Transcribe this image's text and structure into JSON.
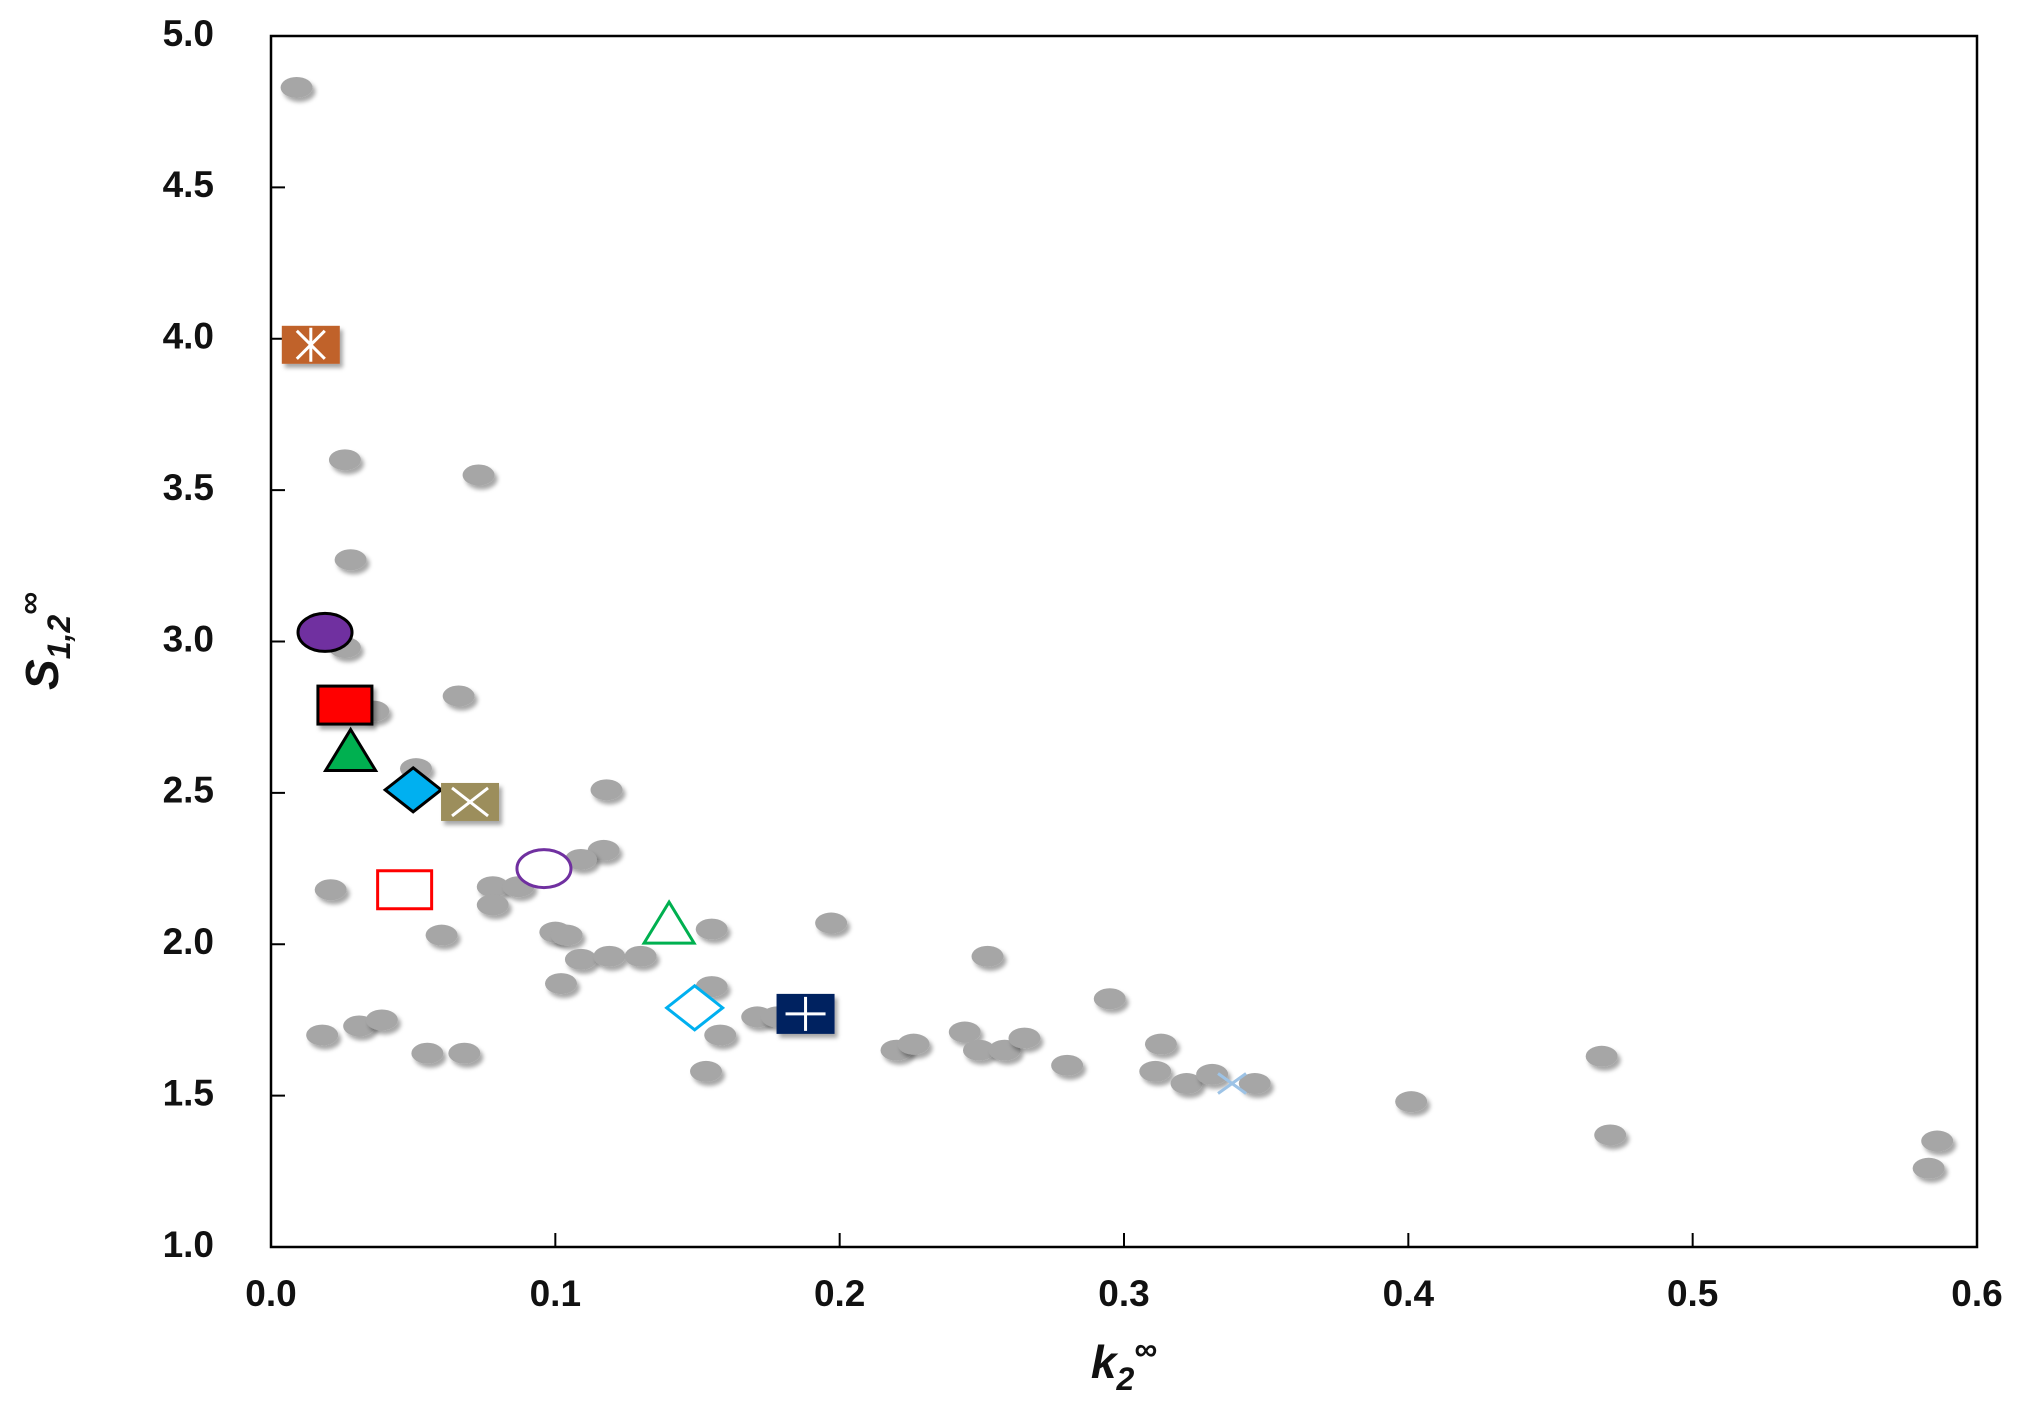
{
  "chart_data": {
    "type": "scatter",
    "xlabel": {
      "base": "k",
      "sub": "2",
      "sup": "∞"
    },
    "ylabel": {
      "base": "S",
      "sub": "1,2",
      "sup": "∞"
    },
    "xlim": [
      0,
      0.6
    ],
    "ylim": [
      1,
      5
    ],
    "xticks": [
      {
        "value": 0,
        "label": "0.0"
      },
      0.1,
      0.2,
      0.3,
      0.4,
      0.5,
      0.6
    ],
    "yticks": [
      {
        "value": 1,
        "label": "1.0"
      },
      1.5,
      {
        "value": 2,
        "label": "2.0"
      },
      2.5,
      {
        "value": 3,
        "label": "3.0"
      },
      3.5,
      {
        "value": 4,
        "label": "4.0"
      },
      4.5,
      {
        "value": 5,
        "label": "5.0"
      }
    ],
    "series": [
      {
        "color": "#a6a6a6",
        "marker": "ellipse",
        "filled": true,
        "x": [
          0.009,
          0.026,
          0.073,
          0.028,
          0.026,
          0.036,
          0.066,
          0.051,
          0.118,
          0.117,
          0.109,
          0.021,
          0.078,
          0.087,
          0.078,
          0.06,
          0.1,
          0.104,
          0.155,
          0.197,
          0.109,
          0.119,
          0.13,
          0.102,
          0.155,
          0.018,
          0.031,
          0.039,
          0.055,
          0.068,
          0.158,
          0.153,
          0.171,
          0.178,
          0.252,
          0.22,
          0.226,
          0.244,
          0.249,
          0.258,
          0.265,
          0.28,
          0.295,
          0.313,
          0.311,
          0.322,
          0.331,
          0.346,
          0.401,
          0.468,
          0.471,
          0.586,
          0.583
        ],
        "values": [
          4.83,
          3.6,
          3.55,
          3.27,
          2.98,
          2.77,
          2.82,
          2.58,
          2.51,
          2.31,
          2.28,
          2.18,
          2.19,
          2.19,
          2.13,
          2.03,
          2.04,
          2.03,
          2.05,
          2.07,
          1.95,
          1.96,
          1.96,
          1.87,
          1.86,
          1.7,
          1.73,
          1.75,
          1.64,
          1.64,
          1.7,
          1.58,
          1.76,
          1.76,
          1.96,
          1.65,
          1.67,
          1.71,
          1.65,
          1.65,
          1.69,
          1.6,
          1.82,
          1.67,
          1.58,
          1.54,
          1.57,
          1.54,
          1.48,
          1.63,
          1.37,
          1.35,
          1.26
        ]
      },
      {
        "color": "#c0622b",
        "marker": "square-asterisk",
        "filled": true,
        "x": [
          0.014
        ],
        "values": [
          3.98
        ]
      },
      {
        "color": "#7030a0",
        "marker": "circle",
        "filled": true,
        "x": [
          0.019
        ],
        "values": [
          3.03
        ]
      },
      {
        "color": "#ff0000",
        "marker": "square",
        "filled": true,
        "x": [
          0.026
        ],
        "values": [
          2.79
        ]
      },
      {
        "color": "#00b050",
        "marker": "triangle",
        "filled": true,
        "x": [
          0.028
        ],
        "values": [
          2.63
        ]
      },
      {
        "color": "#00b0f0",
        "marker": "diamond",
        "filled": true,
        "x": [
          0.05
        ],
        "values": [
          2.51
        ]
      },
      {
        "color": "#9c8e5b",
        "marker": "square-x",
        "filled": true,
        "x": [
          0.07
        ],
        "values": [
          2.47
        ]
      },
      {
        "color": "#ff0000",
        "marker": "square",
        "filled": false,
        "x": [
          0.047
        ],
        "values": [
          2.18
        ]
      },
      {
        "color": "#7030a0",
        "marker": "circle",
        "filled": false,
        "x": [
          0.096
        ],
        "values": [
          2.25
        ]
      },
      {
        "color": "#00b050",
        "marker": "triangle",
        "filled": false,
        "x": [
          0.14
        ],
        "values": [
          2.06
        ]
      },
      {
        "color": "#00b0f0",
        "marker": "diamond",
        "filled": false,
        "x": [
          0.149
        ],
        "values": [
          1.79
        ]
      },
      {
        "color": "#002060",
        "marker": "square-plus",
        "filled": true,
        "x": [
          0.188
        ],
        "values": [
          1.77
        ]
      },
      {
        "color": "#9dc3e6",
        "marker": "x",
        "filled": false,
        "x": [
          0.338
        ],
        "values": [
          1.54
        ]
      }
    ]
  }
}
